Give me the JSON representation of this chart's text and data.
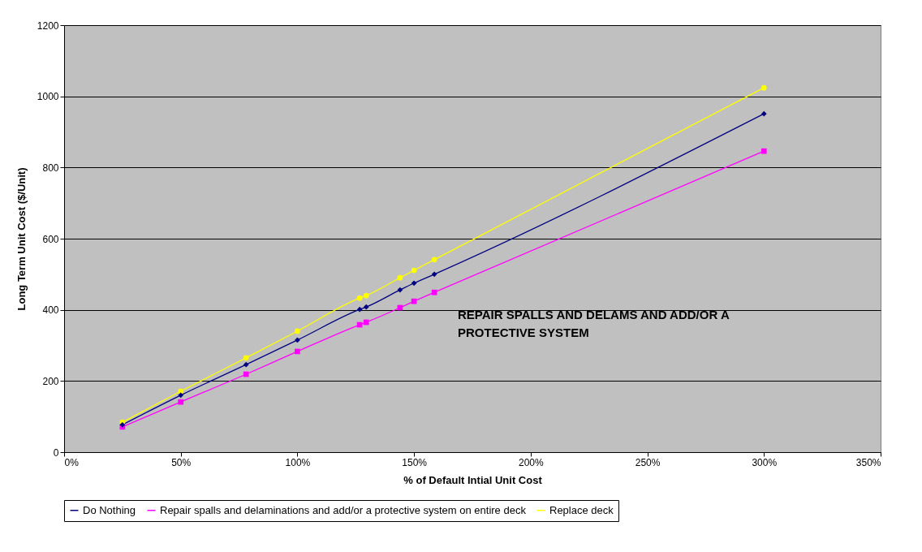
{
  "chart_data": {
    "type": "line",
    "xlabel": "% of Default Intial Unit Cost",
    "ylabel": "Long Term Unit Cost ($/Unit)",
    "x": [
      25,
      50,
      78,
      100,
      126.7,
      129.5,
      144,
      150,
      158.7,
      300
    ],
    "series": [
      {
        "name": "Do Nothing",
        "color": "#000080",
        "marker": "diamond",
        "values": [
          77,
          160,
          246,
          315,
          401,
          408,
          456,
          475,
          500,
          951
        ]
      },
      {
        "name": "Repair spalls and delaminations and add/or a protective system on entire deck",
        "color": "#ff00ff",
        "marker": "square",
        "values": [
          71,
          141,
          219,
          283,
          358,
          365,
          406,
          424,
          449,
          846
        ]
      },
      {
        "name": "Replace deck",
        "color": "#ffff00",
        "marker": "circle",
        "values": [
          84,
          171,
          265,
          340,
          433,
          440,
          490,
          511,
          541,
          1024
        ]
      }
    ],
    "xlim": [
      0,
      350
    ],
    "xticks": [
      {
        "value": 0,
        "label": "0%"
      },
      {
        "value": 50,
        "label": "50%"
      },
      {
        "value": 100,
        "label": "100%"
      },
      {
        "value": 150,
        "label": "150%"
      },
      {
        "value": 200,
        "label": "200%"
      },
      {
        "value": 250,
        "label": "250%"
      },
      {
        "value": 300,
        "label": "300%"
      },
      {
        "value": 350,
        "label": "350%"
      }
    ],
    "ylim": [
      0,
      1200
    ],
    "yticks": [
      0,
      200,
      400,
      600,
      800,
      1000,
      1200
    ],
    "grid": "y",
    "legend": "bottom",
    "line_style": "solid",
    "annotations": [
      "REPAIR SPALLS AND DELAMS AND ADD/OR A PROTECTIVE SYSTEM"
    ]
  }
}
